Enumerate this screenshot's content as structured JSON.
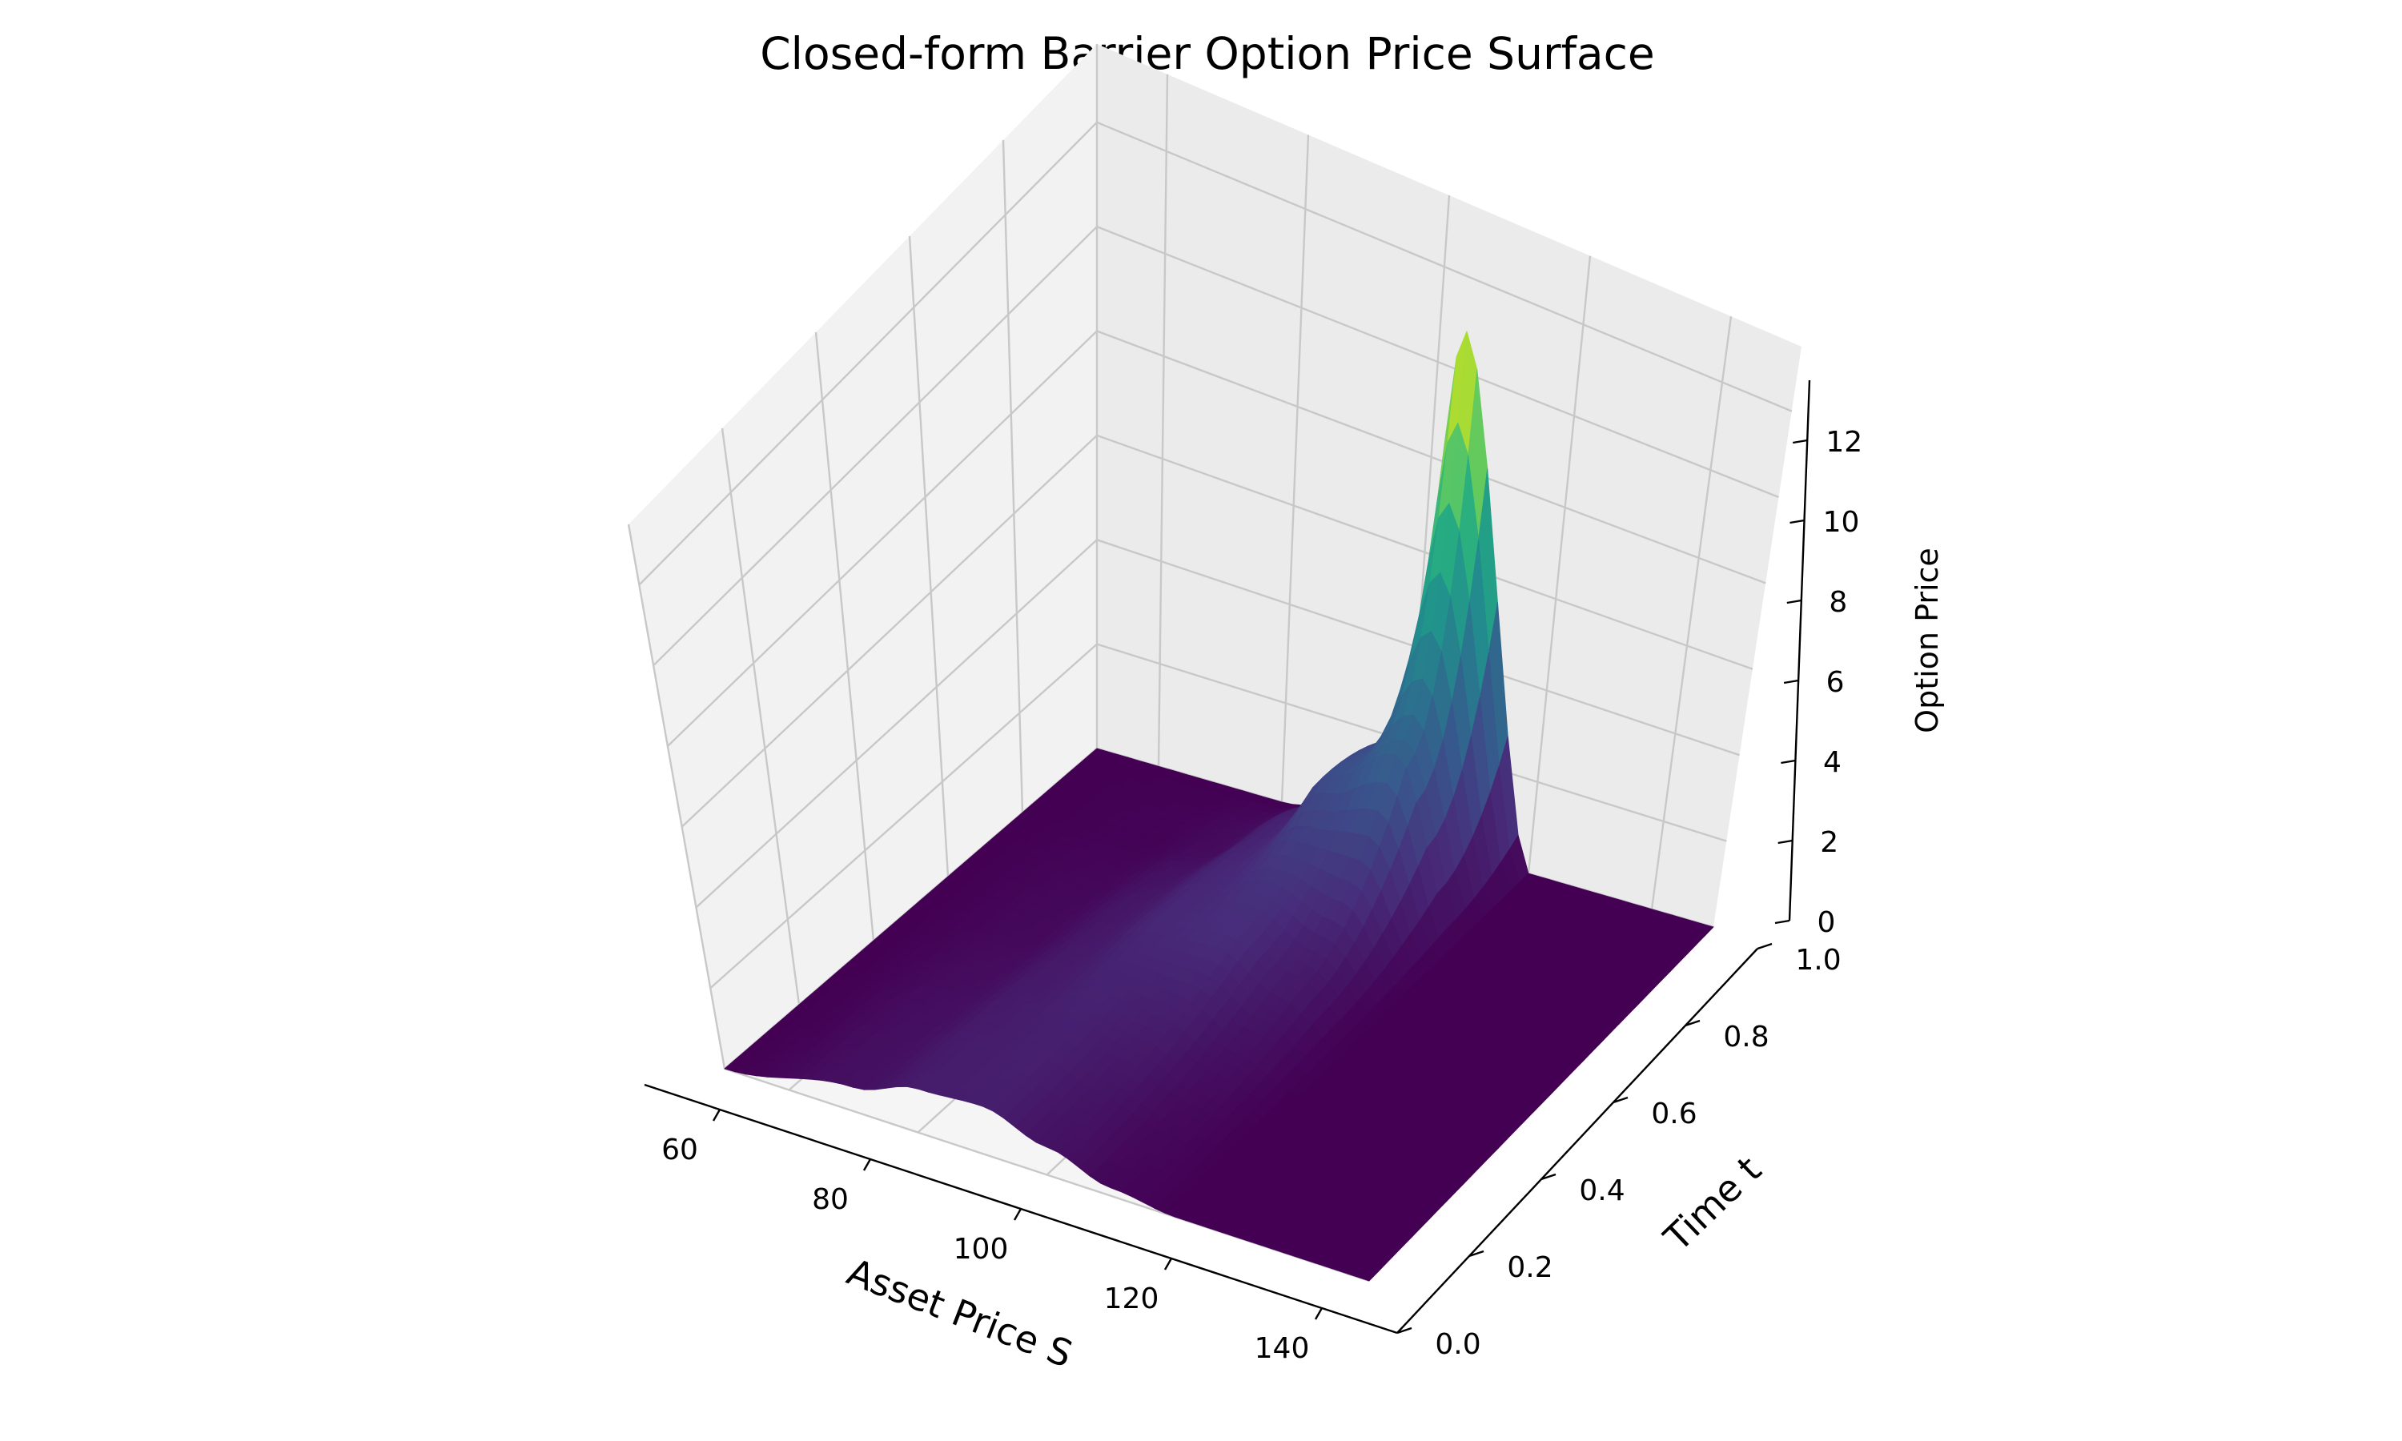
{
  "chart_data": {
    "type": "surface3d",
    "title": "Closed-form Barrier Option Price Surface",
    "xlabel": "Asset Price S",
    "ylabel": "Time t",
    "zlabel": "Option Price",
    "xticks": [
      "60",
      "80",
      "100",
      "120",
      "140"
    ],
    "yticks": [
      "0.0",
      "0.2",
      "0.4",
      "0.6",
      "0.8",
      "1.0"
    ],
    "zticks": [
      "0",
      "2",
      "4",
      "6",
      "8",
      "10",
      "12"
    ],
    "xlim": [
      50,
      150
    ],
    "ylim": [
      0,
      1
    ],
    "zlim": [
      0,
      13.5
    ],
    "colormap": "viridis",
    "grid": true,
    "surface": {
      "description_values": {
        "s_range": [
          50,
          150
        ],
        "t_range": [
          0,
          1
        ],
        "peak_price": 13.3,
        "peak_s": 110,
        "peak_t": 1.0
      },
      "profiles": [
        {
          "t": 0.0,
          "s": [
            50,
            70,
            80,
            90,
            100,
            110,
            120,
            150
          ],
          "price": [
            0.0,
            0.6,
            1.1,
            1.2,
            0.7,
            0.2,
            0.0,
            0.0
          ]
        },
        {
          "t": 0.5,
          "s": [
            50,
            70,
            80,
            90,
            100,
            110,
            120,
            150
          ],
          "price": [
            0.0,
            0.3,
            0.9,
            1.6,
            1.8,
            1.0,
            0.0,
            0.0
          ]
        },
        {
          "t": 0.8,
          "s": [
            50,
            70,
            80,
            90,
            100,
            110,
            120,
            150
          ],
          "price": [
            0.0,
            0.1,
            0.4,
            1.4,
            3.3,
            4.3,
            0.0,
            0.0
          ]
        },
        {
          "t": 1.0,
          "s": [
            50,
            70,
            80,
            90,
            100,
            110,
            120,
            150
          ],
          "price": [
            0.0,
            0.0,
            0.0,
            0.3,
            2.6,
            13.3,
            0.0,
            0.0
          ]
        }
      ]
    }
  }
}
